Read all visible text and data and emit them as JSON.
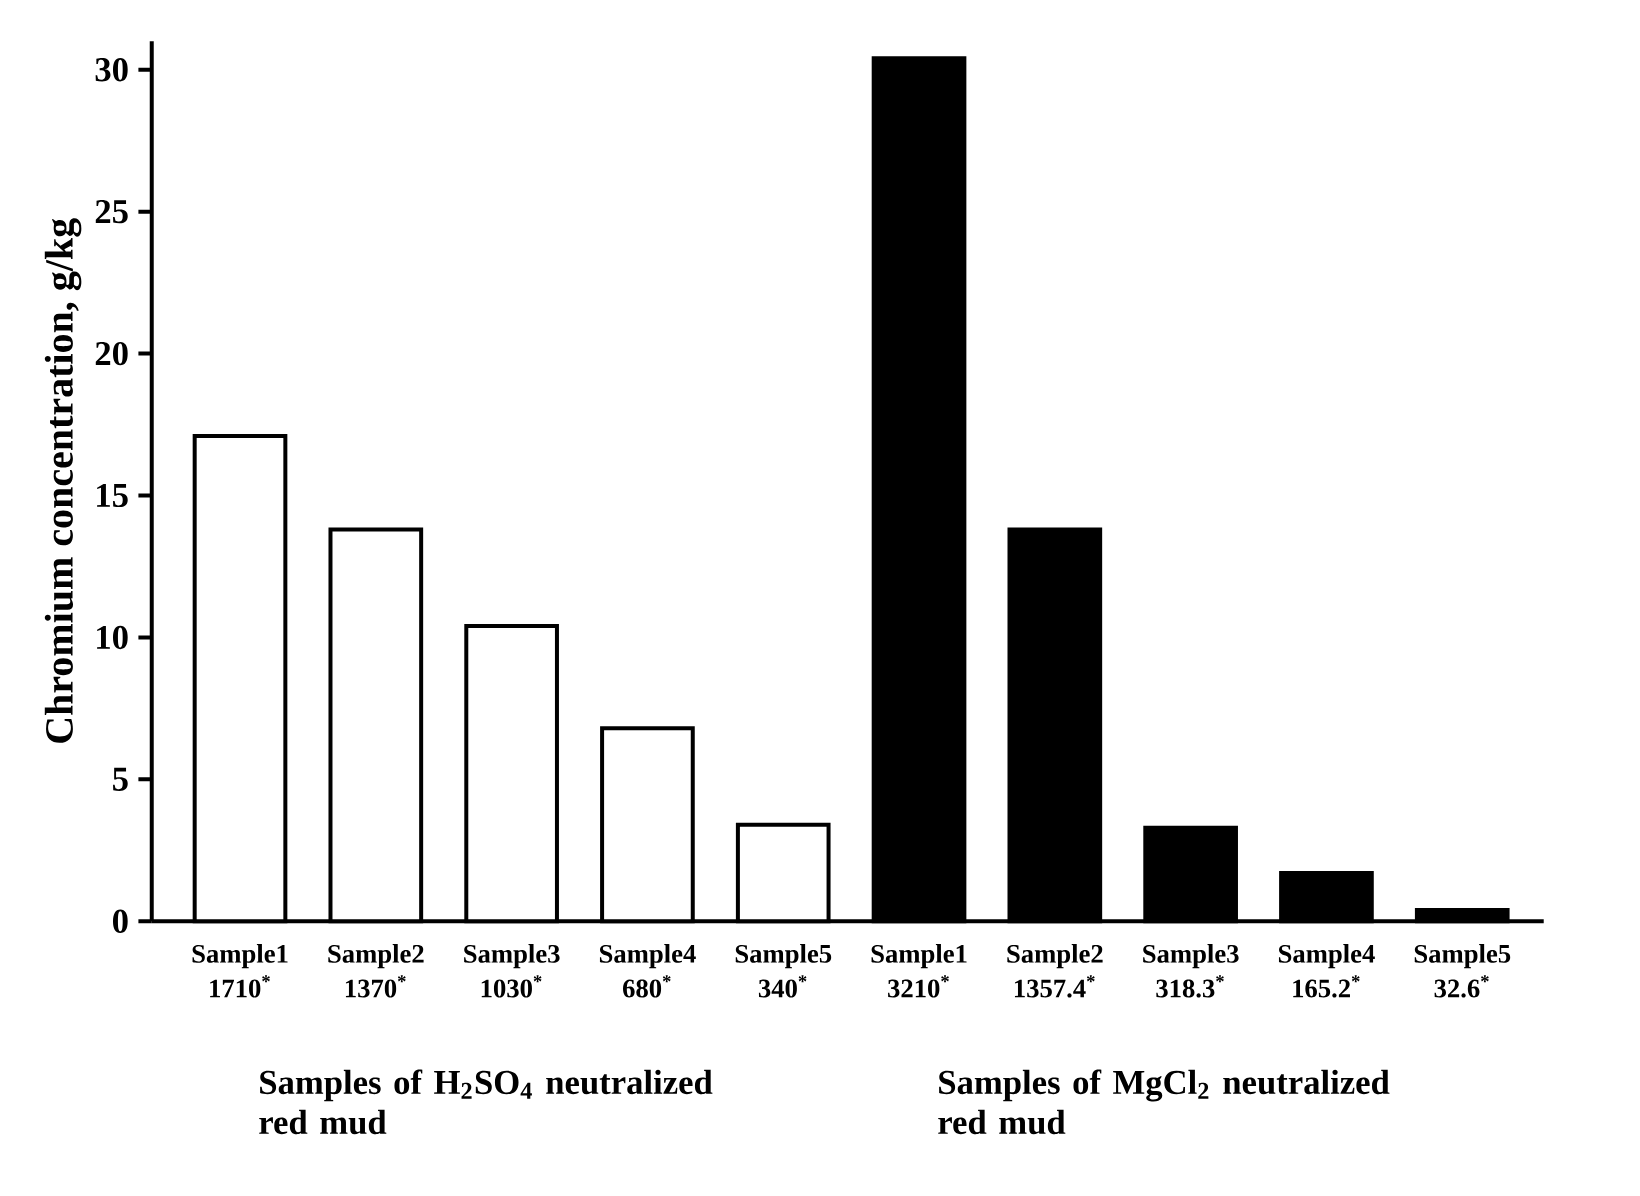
{
  "chart_data": {
    "type": "bar",
    "ylabel": "Chromium concentration, g/kg",
    "categories": [
      "Sample1 1710$^{*}$",
      "Sample2 1370$^{*}$",
      "Sample3 1030$^{*}$",
      "Sample4 680$^{*}$",
      "Sample5 340$^{*}$",
      "Sample1 3210$^{*}$",
      "Sample2 1357.4$^{*}$",
      "Sample3 318.3$^{*}$",
      "Sample4 165.2$^{*}$",
      "Sample5 32.6$^{*}$"
    ],
    "values": [
      17.1,
      13.8,
      10.4,
      6.8,
      3.4,
      30.4,
      13.8,
      3.3,
      1.7,
      0.4
    ],
    "colors": [
      "#ffffff",
      "#ffffff",
      "#ffffff",
      "#ffffff",
      "#ffffff",
      "#000000",
      "#000000",
      "#000000",
      "#000000",
      "#000000"
    ],
    "ylim": [
      0,
      31
    ],
    "yticks": [
      0,
      5,
      10,
      15,
      20,
      25,
      30
    ],
    "grid": false,
    "annotations": [
      "Samples of H$_{2}$SO$_{4}$ neutralized red mud",
      "Samples of MgCl$_{2}$ neutralized red mud"
    ]
  }
}
